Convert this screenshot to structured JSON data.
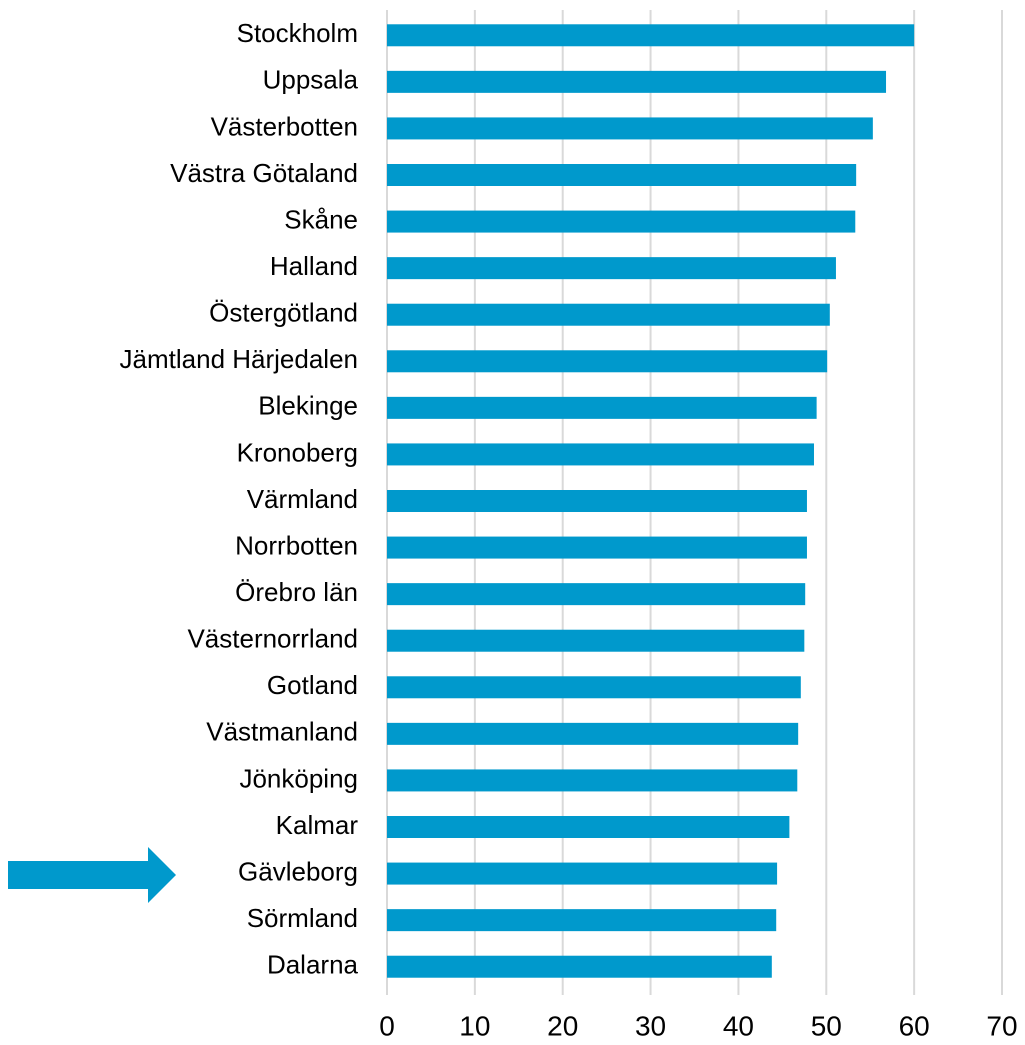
{
  "chart_data": {
    "type": "bar",
    "orientation": "horizontal",
    "categories": [
      "Stockholm",
      "Uppsala",
      "Västerbotten",
      "Västra Götaland",
      "Skåne",
      "Halland",
      "Östergötland",
      "Jämtland Härjedalen",
      "Blekinge",
      "Kronoberg",
      "Värmland",
      "Norrbotten",
      "Örebro län",
      "Västernorrland",
      "Gotland",
      "Västmanland",
      "Jönköping",
      "Kalmar",
      "Gävleborg",
      "Sörmland",
      "Dalarna"
    ],
    "values": [
      60.0,
      56.8,
      55.3,
      53.4,
      53.3,
      51.1,
      50.4,
      50.1,
      48.9,
      48.6,
      47.8,
      47.8,
      47.6,
      47.5,
      47.1,
      46.8,
      46.7,
      45.8,
      44.4,
      44.3,
      43.8
    ],
    "color": "#0099cc",
    "xlim": [
      0,
      70
    ],
    "xticks": [
      0,
      10,
      20,
      30,
      40,
      50,
      60,
      70
    ],
    "grid": true
  }
}
